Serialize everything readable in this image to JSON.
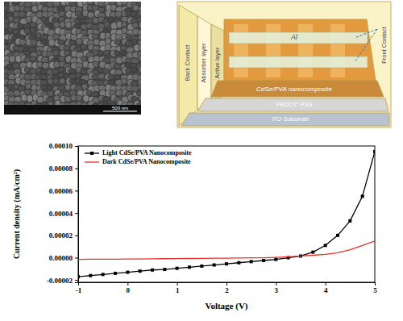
{
  "chart_data": {
    "type": "line",
    "x_label": "Voltage (V)",
    "y_label": "Current density (mA/cm²)",
    "x": [
      -1,
      -0.75,
      -0.5,
      -0.25,
      0,
      0.25,
      0.5,
      0.75,
      1,
      1.25,
      1.5,
      1.75,
      2,
      2.25,
      2.5,
      2.75,
      3,
      3.25,
      3.5,
      3.75,
      4,
      4.25,
      4.5,
      4.75,
      5
    ],
    "series": [
      {
        "name": "Light CdSe/PVA Nanocomposite",
        "color": "#000000",
        "marker": "square",
        "line_style": "solid",
        "values": [
          -1.7e-05,
          -1.6e-05,
          -1.5e-05,
          -1.4e-05,
          -1.3e-05,
          -1.2e-05,
          -1.1e-05,
          -1.05e-05,
          -9.5e-06,
          -8.5e-06,
          -7.5e-06,
          -6.5e-06,
          -5.5e-06,
          -4.5e-06,
          -3.5e-06,
          -2.5e-06,
          -1.5e-06,
          0,
          1.5e-06,
          5e-06,
          1.1e-05,
          2e-05,
          3.3e-05,
          5.5e-05,
          9.5e-05
        ]
      },
      {
        "name": "Dark CdSe/PVA Nanocomposite",
        "color": "#e8312a",
        "marker": "none",
        "line_style": "solid",
        "values": [
          -1.5e-06,
          -1.4e-06,
          -1.4e-06,
          -1.3e-06,
          -1.2e-06,
          -1.1e-06,
          -1e-06,
          -9e-07,
          -8e-07,
          -7e-07,
          -6e-07,
          -5e-07,
          -4e-07,
          -3e-07,
          -1e-07,
          0,
          3e-07,
          8e-07,
          1.5e-06,
          2.2e-06,
          3e-06,
          4.5e-06,
          7.2e-06,
          1.1e-05,
          1.5e-05
        ]
      }
    ],
    "xlim": [
      -1,
      5
    ],
    "ylim": [
      -2.2e-05,
      0.0001
    ],
    "xticks": [
      -1,
      0,
      1,
      2,
      3,
      4,
      5
    ],
    "yticks": [
      {
        "value": -2e-05,
        "label": "-0.00002"
      },
      {
        "value": 0,
        "label": "0.00000"
      },
      {
        "value": 2e-05,
        "label": "0.00002"
      },
      {
        "value": 4e-05,
        "label": "0.00004"
      },
      {
        "value": 6e-05,
        "label": "0.00006"
      },
      {
        "value": 8e-05,
        "label": "0.00008"
      },
      {
        "value": 0.0001,
        "label": "0.00010"
      }
    ],
    "legend": "upper left"
  },
  "sem_image": {
    "scale_bar": "500 nm"
  },
  "schematic": {
    "layers": {
      "substrate": "ITO Substrate",
      "buffer": "PEDOT: PSS",
      "nanocomposite": "CdSe/PVA nanocomposite",
      "electrode": "Al"
    },
    "side_labels": [
      "Back Contact",
      "Absorber layer",
      "Active layer"
    ],
    "front_contact": "Front Contact"
  }
}
